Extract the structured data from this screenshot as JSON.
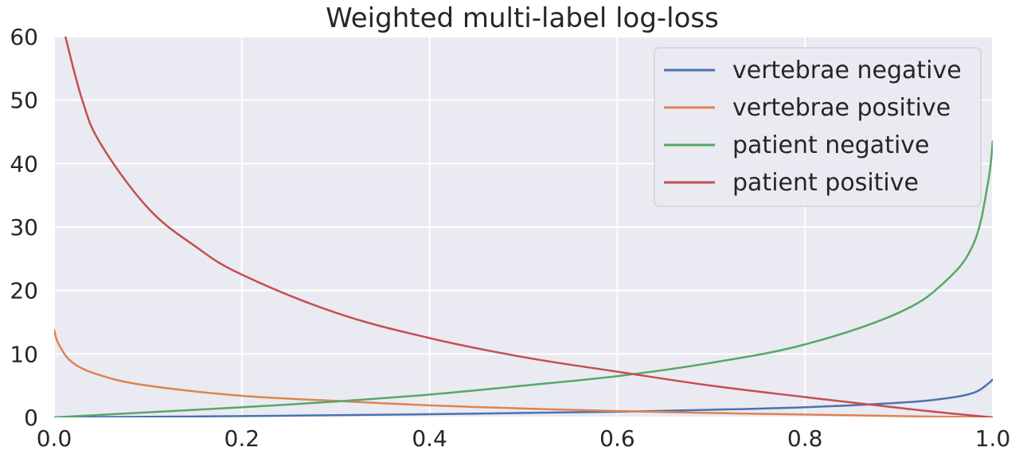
{
  "chart_data": {
    "type": "line",
    "title": "Weighted multi-label log-loss",
    "xlabel": "",
    "ylabel": "",
    "xlim": [
      0.0,
      1.0
    ],
    "ylim": [
      0,
      60
    ],
    "xticks": [
      0.0,
      0.2,
      0.4,
      0.6,
      0.8,
      1.0
    ],
    "xtick_labels": [
      "0.0",
      "0.2",
      "0.4",
      "0.6",
      "0.8",
      "1.0"
    ],
    "yticks": [
      0,
      10,
      20,
      30,
      40,
      50,
      60
    ],
    "ytick_labels": [
      "0",
      "10",
      "20",
      "30",
      "40",
      "50",
      "60"
    ],
    "grid": true,
    "legend_position": "top-right",
    "background": "#eaeaf2",
    "series": [
      {
        "name": "vertebrae negative",
        "color": "#4c72b0",
        "x": [
          0.0,
          0.1,
          0.2,
          0.3,
          0.4,
          0.5,
          0.6,
          0.7,
          0.8,
          0.9,
          0.95,
          0.98,
          0.995,
          1.0
        ],
        "y": [
          0.0,
          0.1,
          0.2,
          0.35,
          0.5,
          0.7,
          0.9,
          1.2,
          1.6,
          2.3,
          3.0,
          3.9,
          5.3,
          6.0
        ]
      },
      {
        "name": "vertebrae positive",
        "color": "#dd8452",
        "x": [
          0.0,
          0.005,
          0.02,
          0.05,
          0.1,
          0.2,
          0.3,
          0.4,
          0.5,
          0.6,
          0.7,
          0.8,
          0.9,
          1.0
        ],
        "y": [
          13.8,
          11.5,
          8.6,
          6.6,
          5.0,
          3.4,
          2.6,
          1.9,
          1.4,
          1.0,
          0.7,
          0.45,
          0.2,
          0.0
        ]
      },
      {
        "name": "patient negative",
        "color": "#55a868",
        "x": [
          0.0,
          0.1,
          0.2,
          0.3,
          0.4,
          0.5,
          0.6,
          0.7,
          0.8,
          0.9,
          0.95,
          0.98,
          0.995,
          1.0
        ],
        "y": [
          0.0,
          0.8,
          1.6,
          2.5,
          3.6,
          5.0,
          6.5,
          8.6,
          11.5,
          16.5,
          21.5,
          27.5,
          37.0,
          43.5
        ]
      },
      {
        "name": "patient positive",
        "color": "#c44e52",
        "x": [
          0.012,
          0.03,
          0.05,
          0.1,
          0.15,
          0.2,
          0.3,
          0.4,
          0.5,
          0.6,
          0.7,
          0.8,
          0.9,
          0.95,
          1.0
        ],
        "y": [
          60.0,
          50.0,
          43.0,
          33.0,
          27.0,
          22.5,
          16.5,
          12.5,
          9.5,
          7.2,
          5.0,
          3.2,
          1.5,
          0.7,
          0.0
        ]
      }
    ]
  }
}
